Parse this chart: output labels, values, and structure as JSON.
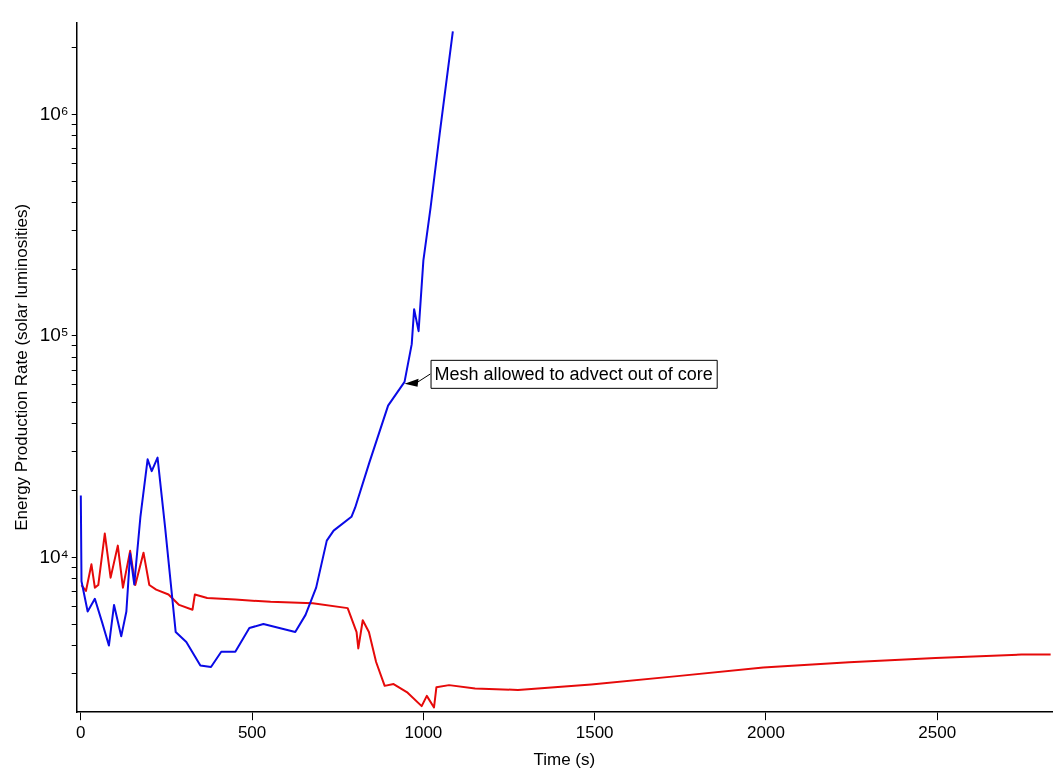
{
  "chart_data": {
    "type": "line",
    "xlabel": "Time (s)",
    "ylabel": "Energy Production Rate (solar luminosities)",
    "log": "y",
    "grid": false,
    "legend": false,
    "marker": "none",
    "line_style": "solid",
    "xlim": [
      -12,
      2835
    ],
    "xticks": [
      0,
      500,
      1000,
      1500,
      2000,
      2500
    ],
    "ylim": [
      2000,
      2600000
    ],
    "yticks": [
      {
        "value": 3000,
        "label": null
      },
      {
        "value": 4000,
        "label": null
      },
      {
        "value": 5000,
        "label": null
      },
      {
        "value": 6000,
        "label": null
      },
      {
        "value": 7000,
        "label": null
      },
      {
        "value": 8000,
        "label": null
      },
      {
        "value": 9000,
        "label": null
      },
      {
        "value": 10000,
        "label": "10⁴"
      },
      {
        "value": 20000,
        "label": null
      },
      {
        "value": 30000,
        "label": null
      },
      {
        "value": 40000,
        "label": null
      },
      {
        "value": 50000,
        "label": null
      },
      {
        "value": 60000,
        "label": null
      },
      {
        "value": 70000,
        "label": null
      },
      {
        "value": 80000,
        "label": null
      },
      {
        "value": 90000,
        "label": null
      },
      {
        "value": 100000,
        "label": "10⁵"
      },
      {
        "value": 200000,
        "label": null
      },
      {
        "value": 300000,
        "label": null
      },
      {
        "value": 400000,
        "label": null
      },
      {
        "value": 500000,
        "label": null
      },
      {
        "value": 600000,
        "label": null
      },
      {
        "value": 700000,
        "label": null
      },
      {
        "value": 800000,
        "label": null
      },
      {
        "value": 900000,
        "label": null
      },
      {
        "value": 1000000,
        "label": "10⁶"
      },
      {
        "value": 2000000,
        "label": null
      }
    ],
    "annotations": [
      {
        "text": "Mesh allowed to advect out of core",
        "x": 945,
        "y": 62000
      }
    ],
    "series": [
      {
        "color": "#0a0ae6",
        "x": [
          0,
          2,
          20,
          41,
          62,
          82,
          97,
          118,
          133,
          144,
          156,
          174,
          195,
          207,
          224,
          246,
          277,
          308,
          349,
          380,
          410,
          451,
          492,
          533,
          626,
          656,
          687,
          718,
          738,
          790,
          801,
          842,
          897,
          945,
          966,
          973,
          986,
          1000,
          1021,
          1048,
          1086
        ],
        "values": [
          19000,
          7800,
          5700,
          6500,
          5100,
          4000,
          6100,
          4400,
          5700,
          10400,
          7550,
          15250,
          27700,
          24500,
          28200,
          13700,
          4600,
          4150,
          3250,
          3200,
          3750,
          3750,
          4800,
          5000,
          4600,
          5500,
          7300,
          11900,
          13200,
          15250,
          16800,
          26700,
          48400,
          62000,
          91700,
          132000,
          105000,
          219000,
          379000,
          826000,
          2370000
        ]
      },
      {
        "color": "#e60a0a",
        "x": [
          2,
          15,
          31,
          41,
          51,
          70,
          87,
          108,
          123,
          144,
          159,
          183,
          200,
          220,
          256,
          287,
          326,
          333,
          369,
          451,
          554,
          677,
          779,
          805,
          810,
          823,
          841,
          862,
          887,
          913,
          954,
          995,
          1010,
          1031,
          1038,
          1075,
          1151,
          1276,
          1490,
          1741,
          1992,
          2243,
          2495,
          2746,
          2831
        ],
        "values": [
          7500,
          7050,
          9300,
          7300,
          7500,
          12800,
          8100,
          11300,
          7300,
          10700,
          7500,
          10500,
          7500,
          7150,
          6800,
          6100,
          5800,
          6800,
          6550,
          6450,
          6300,
          6200,
          5900,
          4600,
          3880,
          5200,
          4600,
          3370,
          2630,
          2680,
          2450,
          2130,
          2370,
          2100,
          2590,
          2650,
          2560,
          2520,
          2670,
          2910,
          3180,
          3360,
          3510,
          3640,
          3640
        ]
      }
    ]
  }
}
